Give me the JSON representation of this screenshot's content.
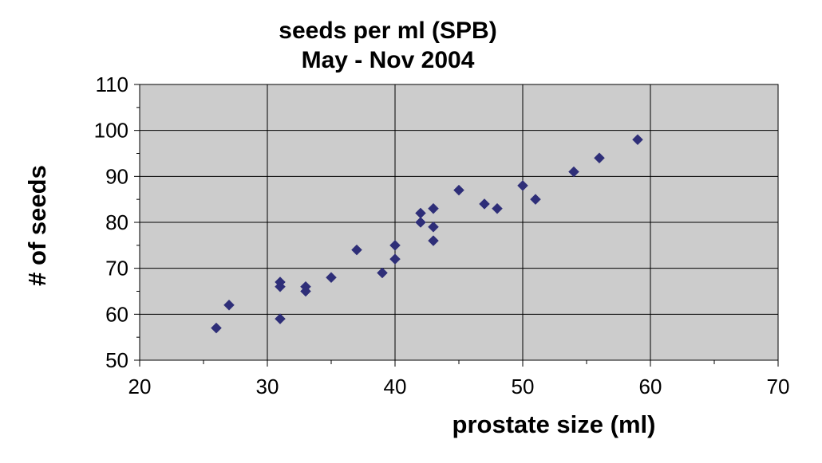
{
  "chart_data": {
    "type": "scatter",
    "title": "seeds per ml (SPB)",
    "subtitle": "May - Nov 2004",
    "xlabel": "prostate size (ml)",
    "ylabel": "# of seeds",
    "xlim": [
      20,
      70
    ],
    "ylim": [
      50,
      110
    ],
    "x_ticks": [
      "20",
      "30",
      "40",
      "50",
      "60",
      "70"
    ],
    "y_ticks": [
      "50",
      "60",
      "70",
      "80",
      "90",
      "100",
      "110"
    ],
    "grid": true,
    "plot_background": "#cccccc",
    "marker_color": "#2e2e78",
    "marker_shape": "diamond",
    "points": [
      {
        "x": 26,
        "y": 57
      },
      {
        "x": 27,
        "y": 62
      },
      {
        "x": 31,
        "y": 59
      },
      {
        "x": 31,
        "y": 66
      },
      {
        "x": 31,
        "y": 67
      },
      {
        "x": 33,
        "y": 65
      },
      {
        "x": 33,
        "y": 66
      },
      {
        "x": 35,
        "y": 68
      },
      {
        "x": 37,
        "y": 74
      },
      {
        "x": 39,
        "y": 69
      },
      {
        "x": 40,
        "y": 72
      },
      {
        "x": 40,
        "y": 75
      },
      {
        "x": 42,
        "y": 80
      },
      {
        "x": 42,
        "y": 82
      },
      {
        "x": 43,
        "y": 76
      },
      {
        "x": 43,
        "y": 79
      },
      {
        "x": 43,
        "y": 83
      },
      {
        "x": 45,
        "y": 87
      },
      {
        "x": 47,
        "y": 84
      },
      {
        "x": 48,
        "y": 83
      },
      {
        "x": 50,
        "y": 88
      },
      {
        "x": 51,
        "y": 85
      },
      {
        "x": 54,
        "y": 91
      },
      {
        "x": 56,
        "y": 94
      },
      {
        "x": 59,
        "y": 98
      }
    ]
  }
}
